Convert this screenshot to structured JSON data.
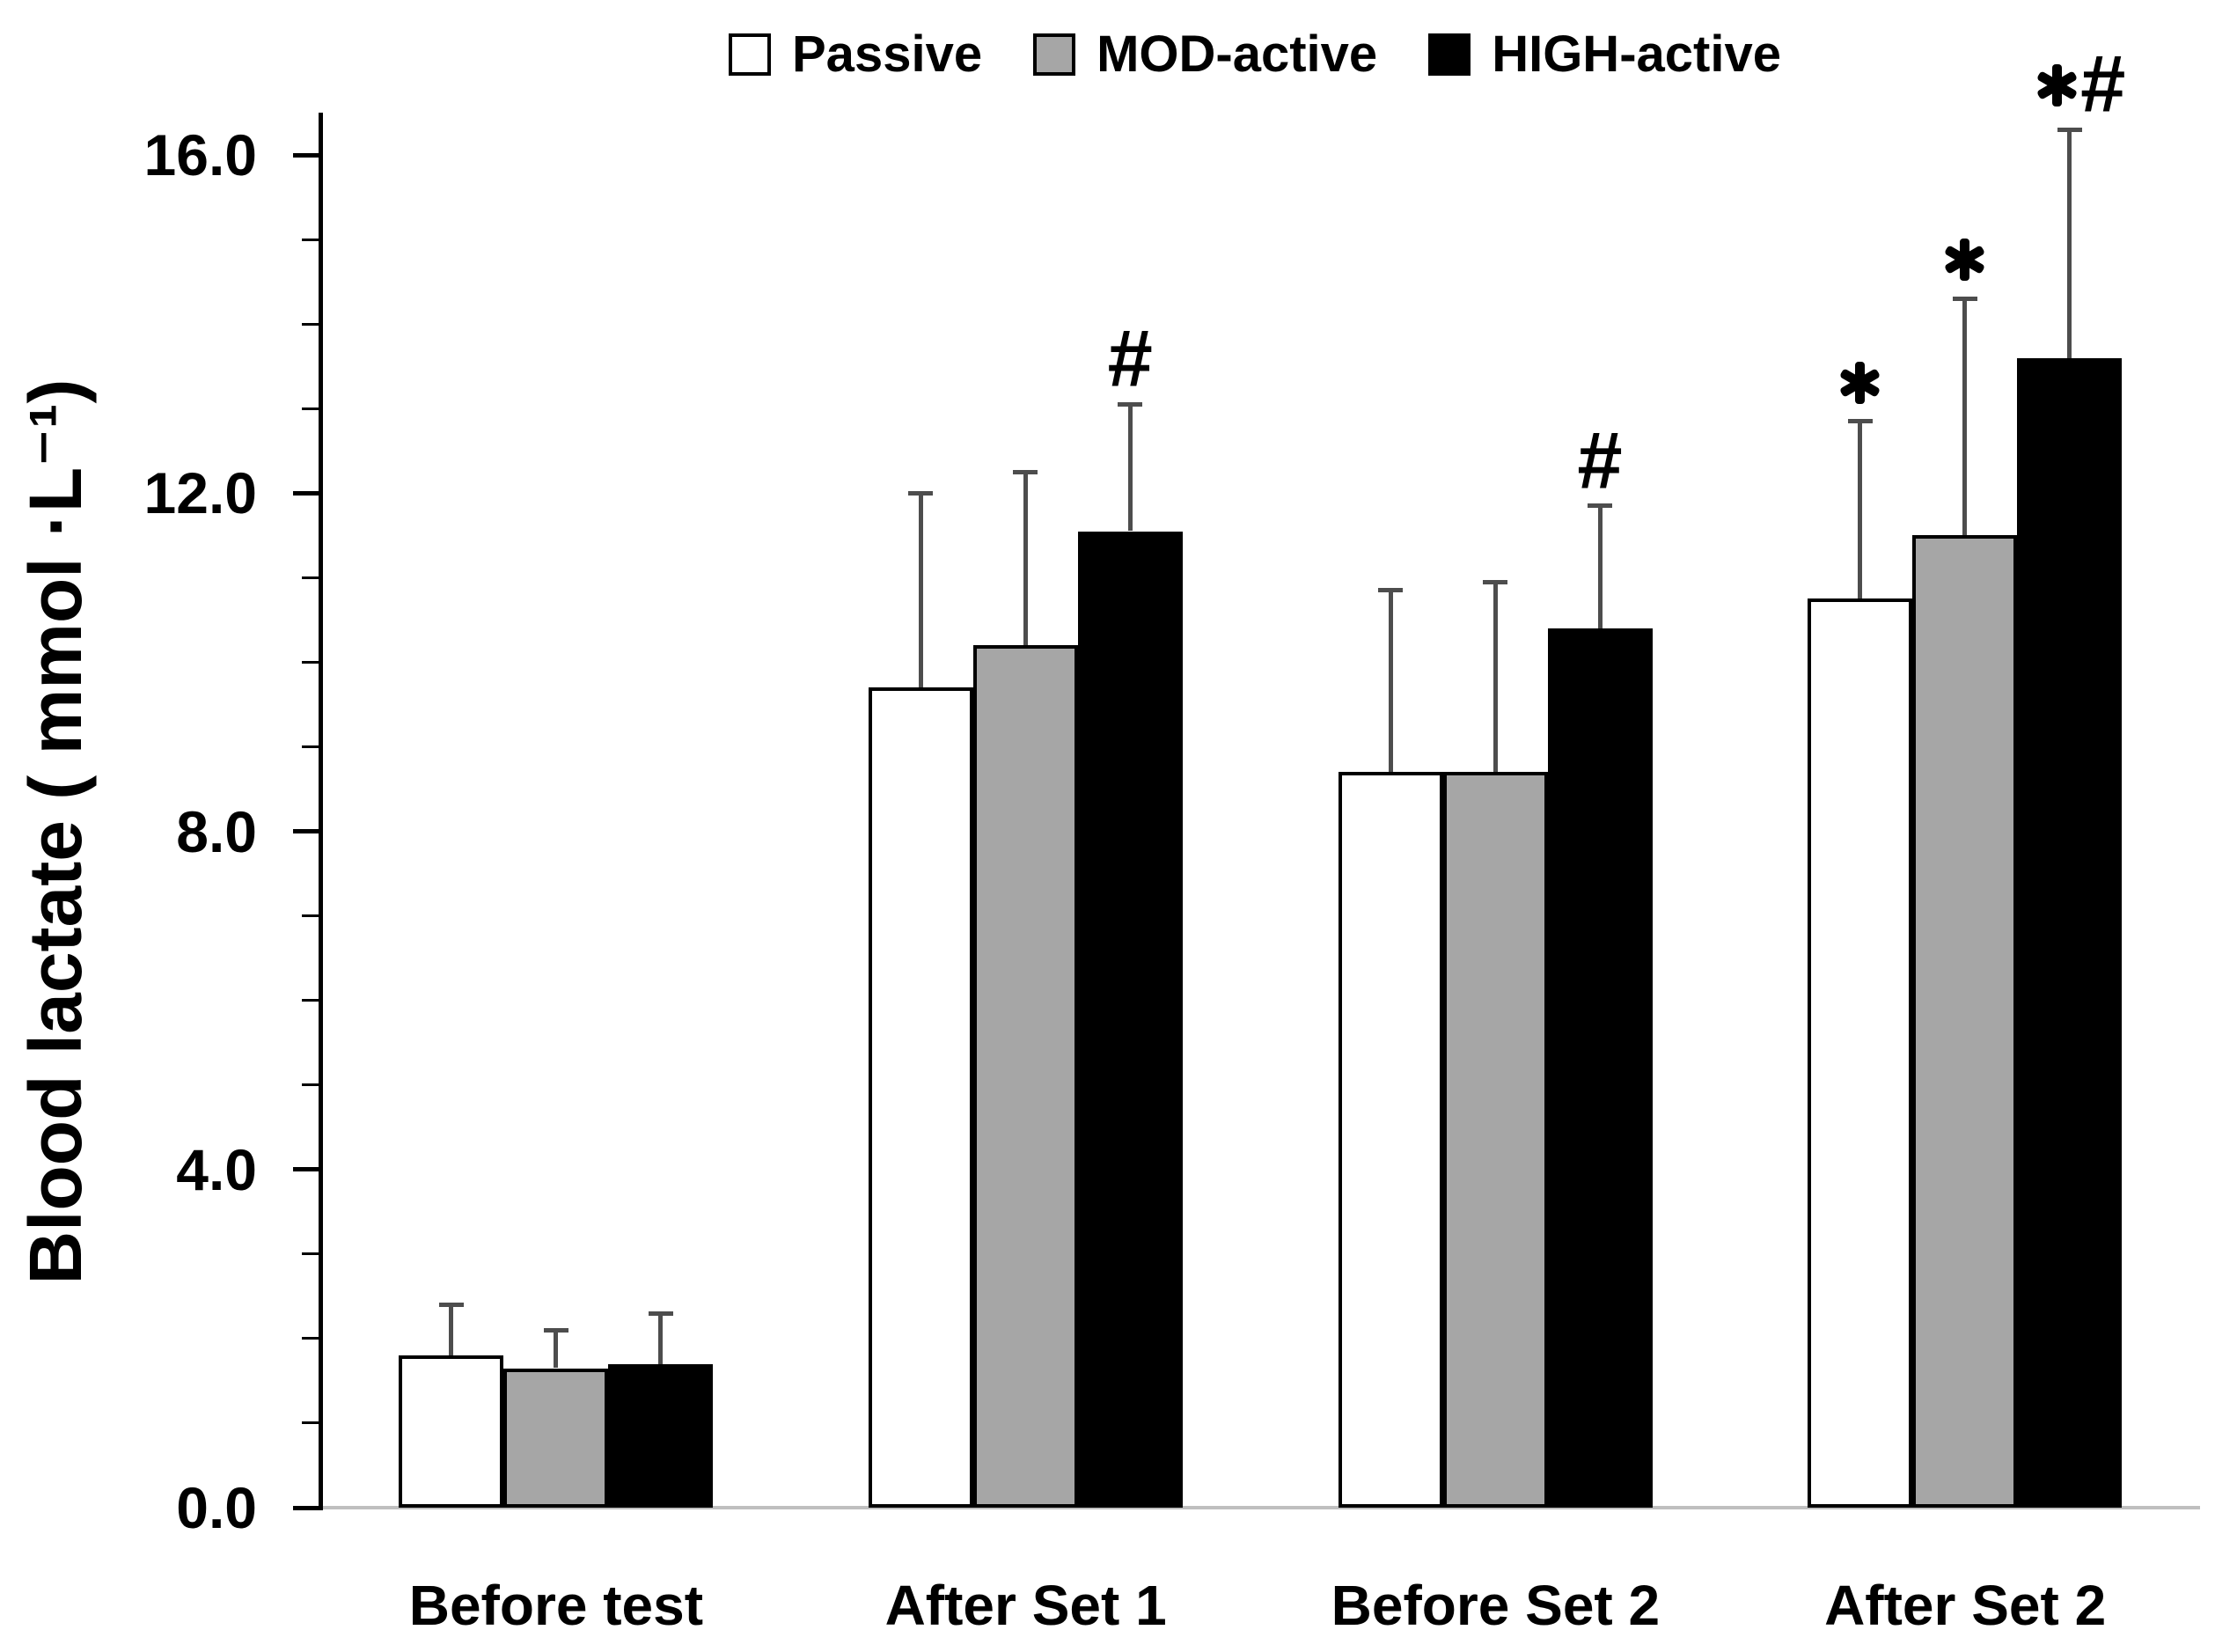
{
  "chart_data": {
    "type": "bar",
    "title": "",
    "ylabel": "Blood lactate ( mmol ·L⁻¹)",
    "xlabel": "",
    "categories": [
      "Before test",
      "After Set 1",
      "Before Set 2",
      "After Set 2"
    ],
    "series": [
      {
        "name": "Passive",
        "fill": "#ffffff",
        "border": "#000000",
        "values": [
          1.8,
          9.7,
          8.7,
          10.75
        ],
        "sd": [
          0.6,
          2.3,
          2.15,
          2.1
        ]
      },
      {
        "name": "MOD-active",
        "fill": "#a6a6a6",
        "border": "#000000",
        "values": [
          1.65,
          10.2,
          8.7,
          11.5
        ],
        "sd": [
          0.45,
          2.05,
          2.25,
          2.8
        ]
      },
      {
        "name": "HIGH-active",
        "fill": "#000000",
        "border": "#000000",
        "values": [
          1.7,
          11.55,
          10.4,
          13.6
        ],
        "sd": [
          0.6,
          1.5,
          1.45,
          2.7
        ]
      }
    ],
    "annotations": [
      {
        "category": "After Set 1",
        "series": "HIGH-active",
        "text": "#"
      },
      {
        "category": "Before Set 2",
        "series": "HIGH-active",
        "text": "#"
      },
      {
        "category": "After Set 2",
        "series": "Passive",
        "text": "*"
      },
      {
        "category": "After Set 2",
        "series": "MOD-active",
        "text": "*"
      },
      {
        "category": "After Set 2",
        "series": "HIGH-active",
        "text": "*#"
      }
    ],
    "yticks": {
      "major_values": [
        0,
        4,
        8,
        12,
        16
      ],
      "major_labels": [
        "0.0",
        "4.0",
        "8.0",
        "12.0",
        "16.0"
      ],
      "minor_step": 1
    },
    "ylim": [
      0,
      16.5
    ],
    "grid": false,
    "legend_position": "top",
    "error_bars": "plus-sd-caps",
    "colors": {
      "passive_fill": "#ffffff",
      "mod_active_fill": "#a6a6a6",
      "high_active_fill": "#000000",
      "bar_border": "#000000",
      "error_bar": "#4d4d4d",
      "baseline": "#bfbfbf",
      "axis": "#000000",
      "text": "#000000"
    }
  }
}
